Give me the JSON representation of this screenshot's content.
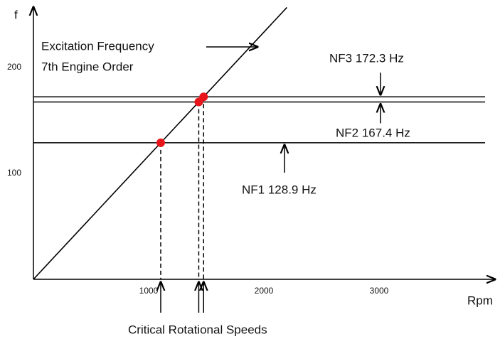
{
  "chart_data": {
    "type": "line",
    "x_label": "f",
    "y_axis_label": "f",
    "x_axis_label": "Rpm",
    "xlim": [
      0,
      4000
    ],
    "ylim": [
      0,
      255
    ],
    "xticks": [
      1000,
      2000,
      3000
    ],
    "yticks": [
      100,
      200
    ],
    "series": [
      {
        "name": "Excitation Frequency",
        "subname": "7th Engine Order",
        "color": "#000000",
        "x": [
          0,
          2200
        ],
        "values": [
          0,
          256.7
        ]
      }
    ],
    "natural_frequencies": [
      {
        "label": "NF1 128.9 Hz",
        "value": 128.9
      },
      {
        "label": "NF2 167.4 Hz",
        "value": 167.4
      },
      {
        "label": "NF3 172.3 Hz",
        "value": 172.3
      }
    ],
    "critical_speeds": {
      "label": "Critical Rotational Speeds",
      "x": [
        1104.9,
        1434.9,
        1476.9
      ],
      "values": [
        128.9,
        167.4,
        172.3
      ],
      "color": "#e8161b"
    },
    "hline_end": 3920
  }
}
